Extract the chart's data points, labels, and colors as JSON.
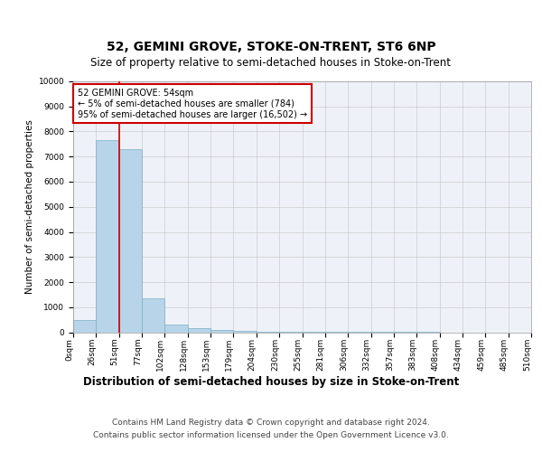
{
  "title": "52, GEMINI GROVE, STOKE-ON-TRENT, ST6 6NP",
  "subtitle": "Size of property relative to semi-detached houses in Stoke-on-Trent",
  "xlabel": "Distribution of semi-detached houses by size in Stoke-on-Trent",
  "ylabel": "Number of semi-detached properties",
  "footer_line1": "Contains HM Land Registry data © Crown copyright and database right 2024.",
  "footer_line2": "Contains public sector information licensed under the Open Government Licence v3.0.",
  "annotation_line1": "52 GEMINI GROVE: 54sqm",
  "annotation_line2": "← 5% of semi-detached houses are smaller (784)",
  "annotation_line3": "95% of semi-detached houses are larger (16,502) →",
  "bar_values": [
    500,
    7650,
    7300,
    1350,
    300,
    150,
    80,
    40,
    20,
    10,
    5,
    3,
    2,
    1,
    1,
    1,
    0,
    0,
    0,
    0
  ],
  "x_labels": [
    "0sqm",
    "26sqm",
    "51sqm",
    "77sqm",
    "102sqm",
    "128sqm",
    "153sqm",
    "179sqm",
    "204sqm",
    "230sqm",
    "255sqm",
    "281sqm",
    "306sqm",
    "332sqm",
    "357sqm",
    "383sqm",
    "408sqm",
    "434sqm",
    "459sqm",
    "485sqm",
    "510sqm"
  ],
  "bar_color": "#b8d4e8",
  "bar_edge_color": "#7aafc8",
  "highlight_color": "#cc0000",
  "annotation_box_color": "#cc0000",
  "ylim": [
    0,
    10000
  ],
  "yticks": [
    0,
    1000,
    2000,
    3000,
    4000,
    5000,
    6000,
    7000,
    8000,
    9000,
    10000
  ],
  "bg_color": "#eef2f8",
  "grid_color": "#cccccc",
  "title_fontsize": 10,
  "subtitle_fontsize": 8.5,
  "xlabel_fontsize": 8.5,
  "ylabel_fontsize": 7.5,
  "tick_fontsize": 6.5,
  "annotation_fontsize": 7,
  "footer_fontsize": 6.5
}
